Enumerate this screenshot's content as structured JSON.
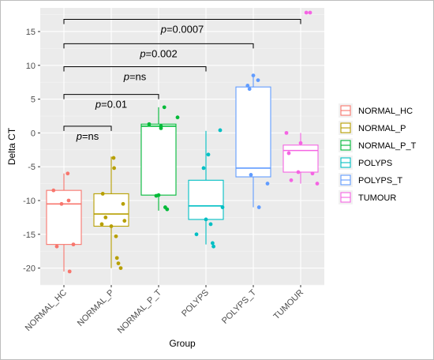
{
  "chart_data": {
    "type": "box",
    "xlabel": "Group",
    "ylabel": "Delta CT",
    "ylim": [
      -22.5,
      18.5
    ],
    "yticks": [
      15,
      10,
      5,
      0,
      -5,
      -10,
      -15,
      -20
    ],
    "grid": true,
    "legend_placement": "right",
    "categories": [
      "NORMAL_HC",
      "NORMAL_P",
      "NORMAL_P_T",
      "POLYPS",
      "POLYPS_T",
      "TUMOUR"
    ],
    "colors": [
      "#f8766d",
      "#b79f00",
      "#00ba38",
      "#00bfc4",
      "#619cff",
      "#f564e3"
    ],
    "boxes": [
      {
        "name": "NORMAL_HC",
        "min": -20.5,
        "q1": -16.5,
        "median": -10.5,
        "q3": -8.5,
        "max": -6.0,
        "points": [
          [
            -0.22,
            -8.5
          ],
          [
            -0.15,
            -16.8
          ],
          [
            0.08,
            -6.0
          ],
          [
            0.1,
            -10.0
          ],
          [
            0.12,
            -20.5
          ],
          [
            0.2,
            -16.5
          ],
          [
            -0.05,
            -10.5
          ]
        ]
      },
      {
        "name": "NORMAL_P",
        "min": -20.0,
        "q1": -13.8,
        "median": -12.0,
        "q3": -9.0,
        "max": -3.5,
        "points": [
          [
            -0.2,
            -13.5
          ],
          [
            -0.18,
            -9.0
          ],
          [
            -0.12,
            -12.5
          ],
          [
            0.05,
            -3.7
          ],
          [
            0.06,
            -5.2
          ],
          [
            0.1,
            -15.3
          ],
          [
            0.12,
            -18.5
          ],
          [
            0.15,
            -19.3
          ],
          [
            0.2,
            -20.0
          ],
          [
            0.25,
            -10.5
          ],
          [
            0.28,
            -13.0
          ],
          [
            0.0,
            -13.8
          ]
        ]
      },
      {
        "name": "NORMAL_P_T",
        "min": -11.5,
        "q1": -9.2,
        "median": 1.0,
        "q3": 1.3,
        "max": 3.8,
        "points": [
          [
            -0.2,
            1.3
          ],
          [
            -0.05,
            -9.3
          ],
          [
            0.05,
            0.7
          ],
          [
            0.05,
            1.0
          ],
          [
            0.12,
            3.8
          ],
          [
            0.14,
            -11.0
          ],
          [
            0.18,
            -11.3
          ],
          [
            0.4,
            2.3
          ],
          [
            0.0,
            -9.2
          ]
        ]
      },
      {
        "name": "POLYPS",
        "min": -16.5,
        "q1": -12.8,
        "median": -10.8,
        "q3": -7.0,
        "max": 0.3,
        "points": [
          [
            -0.2,
            -15.0
          ],
          [
            -0.05,
            -5.2
          ],
          [
            0.05,
            -3.2
          ],
          [
            0.1,
            -13.5
          ],
          [
            0.14,
            -16.3
          ],
          [
            0.16,
            -16.8
          ],
          [
            0.3,
            0.4
          ],
          [
            0.35,
            -11.0
          ],
          [
            0.0,
            -12.8
          ]
        ]
      },
      {
        "name": "POLYPS_T",
        "min": -11.0,
        "q1": -6.5,
        "median": -5.2,
        "q3": 6.8,
        "max": 8.3,
        "points": [
          [
            -0.12,
            7.0
          ],
          [
            -0.08,
            6.5
          ],
          [
            -0.05,
            -6.2
          ],
          [
            0.0,
            8.5
          ],
          [
            0.1,
            7.8
          ],
          [
            0.12,
            -11.0
          ],
          [
            0.3,
            -7.5
          ]
        ]
      },
      {
        "name": "TUMOUR",
        "min": -7.5,
        "q1": -5.8,
        "median": -2.6,
        "q3": -1.8,
        "max": 0.0,
        "points": [
          [
            -0.3,
            0.0
          ],
          [
            -0.25,
            -3.0
          ],
          [
            -0.2,
            -7.0
          ],
          [
            0.0,
            -1.5
          ],
          [
            0.12,
            17.8
          ],
          [
            0.2,
            17.8
          ],
          [
            0.25,
            -6.0
          ],
          [
            0.35,
            -7.5
          ],
          [
            -0.05,
            -5.8
          ]
        ]
      }
    ],
    "comparisons": [
      {
        "from": 0,
        "to": 5,
        "y": 16.8,
        "label": "p=0.0007"
      },
      {
        "from": 0,
        "to": 4,
        "y": 13.2,
        "label": "p=0.002"
      },
      {
        "from": 0,
        "to": 3,
        "y": 9.8,
        "label": "p=ns"
      },
      {
        "from": 0,
        "to": 2,
        "y": 5.7,
        "label": "p=0.01"
      },
      {
        "from": 0,
        "to": 1,
        "y": 1.0,
        "label": "p=ns"
      }
    ]
  }
}
